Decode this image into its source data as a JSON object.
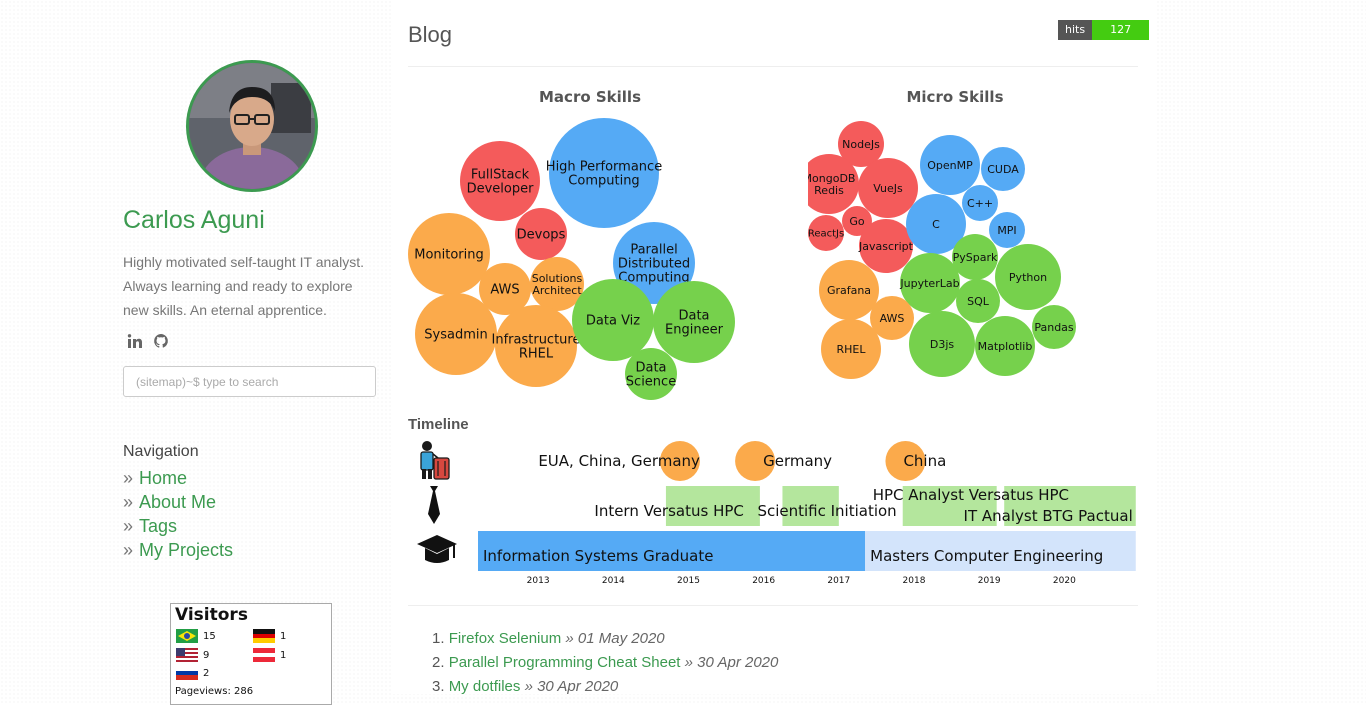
{
  "profile": {
    "name": "Carlos Aguni",
    "bio": "Highly motivated self-taught IT analyst. Always learning and ready to explore new skills. An eternal apprentice."
  },
  "social": [
    {
      "icon": "linkedin-icon",
      "label": "in"
    },
    {
      "icon": "github-icon",
      "label": ""
    }
  ],
  "search": {
    "placeholder": "(sitemap)~$ type to search"
  },
  "navigation": {
    "title": "Navigation",
    "items": [
      {
        "label": "Home"
      },
      {
        "label": "About Me"
      },
      {
        "label": "Tags"
      },
      {
        "label": "My Projects"
      }
    ]
  },
  "visitors": {
    "title": "Visitors",
    "entries": [
      {
        "flag": "brazil-flag",
        "count": "15"
      },
      {
        "flag": "germany-flag",
        "count": "1"
      },
      {
        "flag": "usa-flag",
        "count": "9"
      },
      {
        "flag": "austria-flag",
        "count": "1"
      },
      {
        "flag": "russia-flag",
        "count": "2"
      }
    ],
    "pageviews": "Pageviews: 286"
  },
  "main": {
    "title": "Blog",
    "hits": {
      "label": "hits",
      "value": "127"
    }
  },
  "chart_data": [
    {
      "type": "bubble",
      "title": "Macro Skills",
      "bubbles": [
        {
          "label": "High Performance Computing",
          "group": "blue"
        },
        {
          "label": "FullStack Developer",
          "group": "red"
        },
        {
          "label": "Devops",
          "group": "red"
        },
        {
          "label": "Parallel Distributed Computing",
          "group": "blue"
        },
        {
          "label": "Monitoring",
          "group": "orange"
        },
        {
          "label": "AWS",
          "group": "orange"
        },
        {
          "label": "Solutions Architect",
          "group": "orange"
        },
        {
          "label": "Sysadmin",
          "group": "orange"
        },
        {
          "label": "Infrastructure RHEL",
          "group": "orange"
        },
        {
          "label": "Data Viz",
          "group": "green"
        },
        {
          "label": "Data Engineer",
          "group": "green"
        },
        {
          "label": "Data Science",
          "group": "green"
        }
      ]
    },
    {
      "type": "bubble",
      "title": "Micro Skills",
      "bubbles": [
        {
          "label": "NodeJs",
          "group": "red"
        },
        {
          "label": "MongoDB Redis",
          "group": "red"
        },
        {
          "label": "VueJs",
          "group": "red"
        },
        {
          "label": "Go",
          "group": "red"
        },
        {
          "label": "ReactJs",
          "group": "red"
        },
        {
          "label": "Javascript",
          "group": "red"
        },
        {
          "label": "OpenMP",
          "group": "blue"
        },
        {
          "label": "CUDA",
          "group": "blue"
        },
        {
          "label": "C++",
          "group": "blue"
        },
        {
          "label": "C",
          "group": "blue"
        },
        {
          "label": "MPI",
          "group": "blue"
        },
        {
          "label": "PySpark",
          "group": "green"
        },
        {
          "label": "Python",
          "group": "green"
        },
        {
          "label": "JupyterLab",
          "group": "green"
        },
        {
          "label": "SQL",
          "group": "green"
        },
        {
          "label": "Pandas",
          "group": "green"
        },
        {
          "label": "D3js",
          "group": "green"
        },
        {
          "label": "Matplotlib",
          "group": "green"
        },
        {
          "label": "Grafana",
          "group": "orange"
        },
        {
          "label": "AWS",
          "group": "orange"
        },
        {
          "label": "RHEL",
          "group": "orange"
        }
      ]
    },
    {
      "type": "timeline",
      "title": "Timeline",
      "x_ticks": [
        "2013",
        "2014",
        "2015",
        "2016",
        "2017",
        "2018",
        "2019",
        "2020"
      ],
      "xlim": [
        2012.2,
        2020.9
      ],
      "lanes": [
        {
          "name": "travel",
          "icon": "traveler-icon",
          "events": [
            {
              "label": "EUA, China, Germany",
              "at": 2014.7
            },
            {
              "label": "Germany",
              "at": 2015.7
            },
            {
              "label": "China",
              "at": 2017.7
            }
          ]
        },
        {
          "name": "work",
          "icon": "tie-icon",
          "events": [
            {
              "label": "Intern Versatus HPC",
              "start": 2014.7,
              "end": 2015.95
            },
            {
              "label": "Scientific Initiation",
              "start": 2016.25,
              "end": 2017.0
            },
            {
              "label": "HPC Analyst Versatus HPC",
              "start": 2017.85,
              "end": 2019.1
            },
            {
              "label": "IT Analyst BTG Pactual",
              "start": 2019.2,
              "end": 2020.95
            }
          ]
        },
        {
          "name": "education",
          "icon": "graduation-cap-icon",
          "events": [
            {
              "label": "Information Systems Graduate",
              "start": 2012.2,
              "end": 2017.35
            },
            {
              "label": "Masters Computer Engineering",
              "start": 2017.35,
              "end": 2020.95
            }
          ]
        }
      ]
    }
  ],
  "posts": [
    {
      "title": "Firefox Selenium",
      "date": "01 May 2020"
    },
    {
      "title": "Parallel Programming Cheat Sheet",
      "date": "30 Apr 2020"
    },
    {
      "title": "My dotfiles",
      "date": "30 Apr 2020"
    }
  ],
  "colors": {
    "red": "#f45b5b",
    "blue": "#55aaf5",
    "orange": "#fbaa4b",
    "green": "#76d14c",
    "accent": "#3c9a50"
  }
}
